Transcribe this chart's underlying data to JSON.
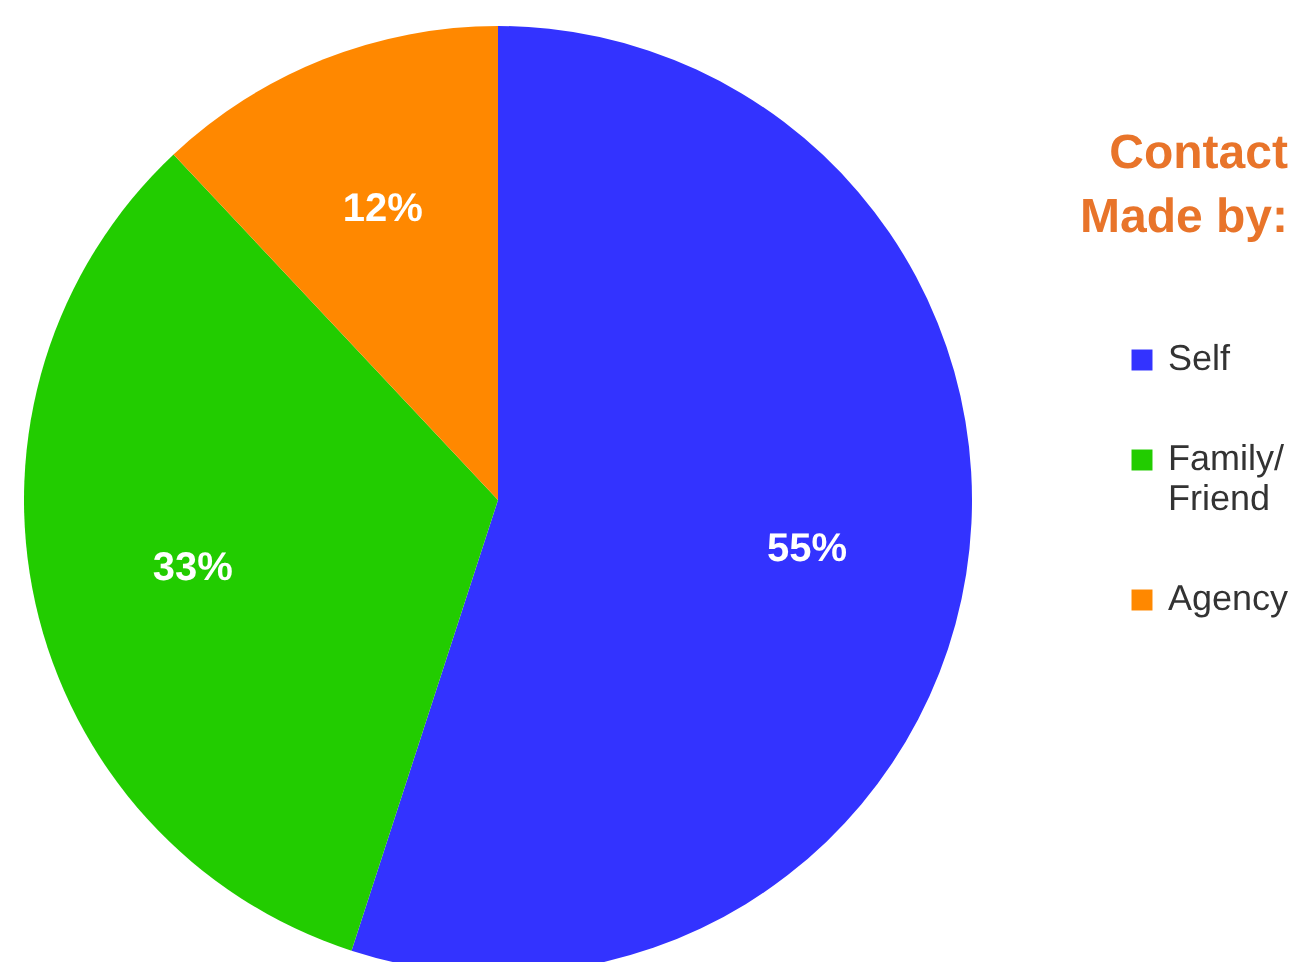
{
  "chart_data": {
    "type": "pie",
    "legend_title": "Contact Made by:",
    "categories": [
      "Self",
      "Family/Friend",
      "Agency"
    ],
    "values": [
      55,
      33,
      12
    ],
    "colors": [
      "#3333ff",
      "#22cc00",
      "#ff8800"
    ],
    "value_labels": [
      "55%",
      "33%",
      "12%"
    ],
    "legend": "right"
  }
}
